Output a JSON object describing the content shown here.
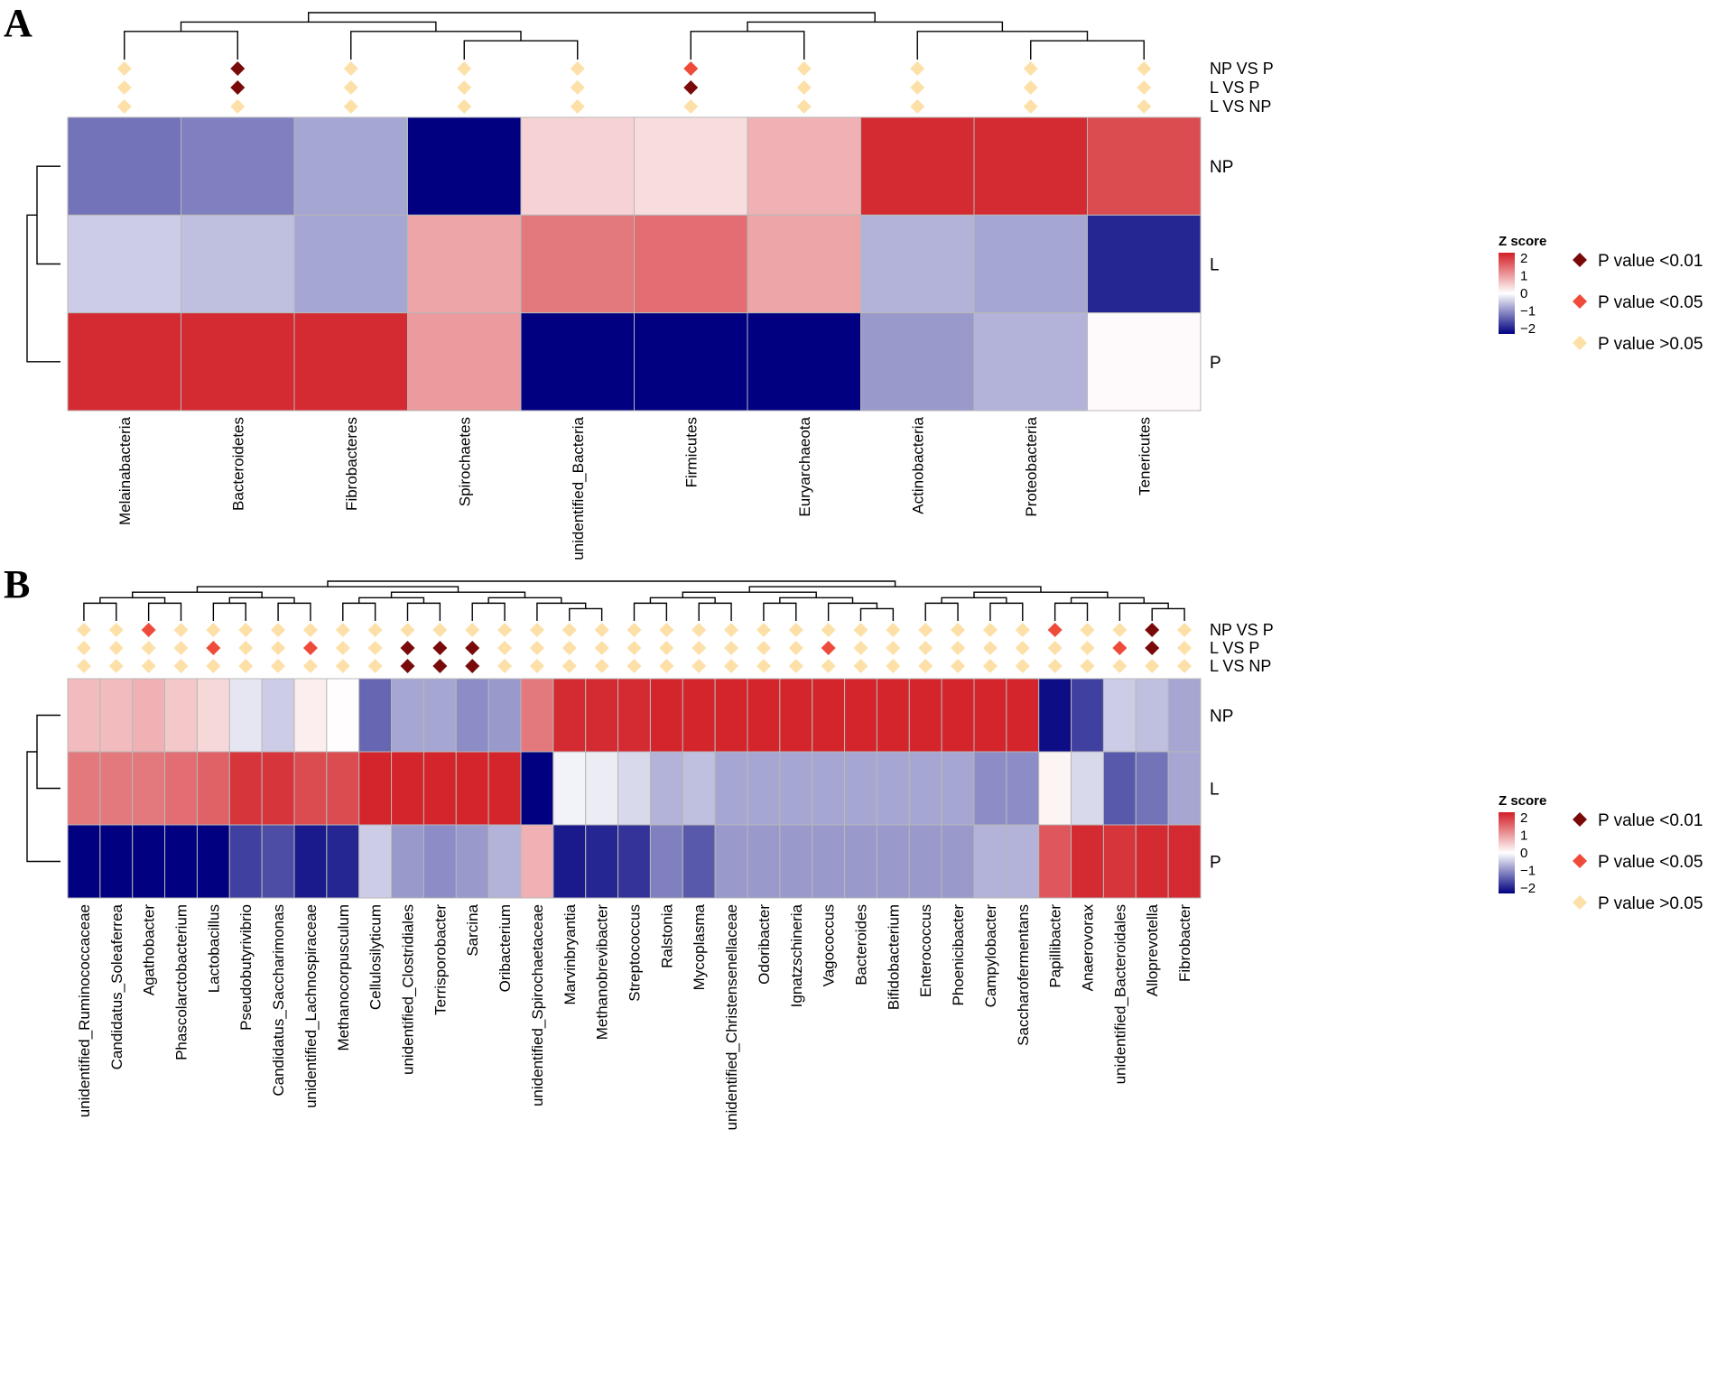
{
  "chart_data": [
    {
      "type": "heatmap",
      "panel": "A",
      "rows": [
        "NP",
        "L",
        "P"
      ],
      "columns": [
        "Melainabacteria",
        "Bacteroidetes",
        "Fibrobacteres",
        "Spirochaetes",
        "unidentified_Bacteria",
        "Firmicutes",
        "Euryarchaeota",
        "Actinobacteria",
        "Proteobacteria",
        "Tenericutes"
      ],
      "z": [
        [
          -1.1,
          -1.0,
          -0.7,
          -2.0,
          0.4,
          0.3,
          0.7,
          1.9,
          1.9,
          1.6
        ],
        [
          -0.4,
          -0.5,
          -0.7,
          0.8,
          1.2,
          1.3,
          0.8,
          -0.6,
          -0.7,
          -1.7
        ],
        [
          1.9,
          1.9,
          1.9,
          0.9,
          -2.0,
          -2.0,
          -2.0,
          -0.8,
          -0.6,
          0.05
        ]
      ],
      "tests": [
        "NP VS P",
        "L VS P",
        "L VS NP"
      ],
      "significance": [
        [
          ">0.05",
          "<0.01",
          ">0.05",
          ">0.05",
          ">0.05",
          "<0.05",
          ">0.05",
          ">0.05",
          ">0.05",
          ">0.05"
        ],
        [
          ">0.05",
          "<0.01",
          ">0.05",
          ">0.05",
          ">0.05",
          "<0.01",
          ">0.05",
          ">0.05",
          ">0.05",
          ">0.05"
        ],
        [
          ">0.05",
          ">0.05",
          ">0.05",
          ">0.05",
          ">0.05",
          ">0.05",
          ">0.05",
          ">0.05",
          ">0.05",
          ">0.05"
        ]
      ],
      "zlim": [
        -2,
        2
      ]
    },
    {
      "type": "heatmap",
      "panel": "B",
      "rows": [
        "NP",
        "L",
        "P"
      ],
      "columns": [
        "unidentified_Ruminococcaceae",
        "Candidatus_Soleaferrea",
        "Agathobacter",
        "Phascolarctobacterium",
        "Lactobacillus",
        "Pseudobutyrivibrio",
        "Candidatus_Saccharimonas",
        "unidentified_Lachnospiraceae",
        "Methanocorpusculum",
        "Cellulosilyticum",
        "unidentified_Clostridiales",
        "Terrisporobacter",
        "Sarcina",
        "Oribacterium",
        "unidentified_Spirochaetaceae",
        "Marvinbryantia",
        "Methanobrevibacter",
        "Streptococcus",
        "Ralstonia",
        "Mycoplasma",
        "unidentified_Christensenellaceae",
        "Odoribacter",
        "Ignatzschineria",
        "Vagococcus",
        "Bacteroides",
        "Bifidobacterium",
        "Enterococcus",
        "Phoenicibacter",
        "Campylobacter",
        "Saccharofermentans",
        "Papillibacter",
        "Anaerovorax",
        "unidentified_Bacteroidales",
        "Alloprevotella",
        "Fibrobacter"
      ],
      "z": [
        [
          0.6,
          0.6,
          0.7,
          0.5,
          0.35,
          -0.2,
          -0.4,
          0.15,
          0.02,
          -1.2,
          -0.7,
          -0.7,
          -0.9,
          -0.8,
          1.2,
          1.9,
          1.9,
          1.9,
          1.95,
          1.95,
          1.95,
          1.95,
          1.95,
          1.95,
          1.95,
          1.95,
          1.95,
          1.95,
          1.95,
          1.95,
          -1.9,
          -1.5,
          -0.4,
          -0.5,
          -0.7
        ],
        [
          1.2,
          1.2,
          1.2,
          1.3,
          1.4,
          1.8,
          1.8,
          1.6,
          1.6,
          1.95,
          1.95,
          1.95,
          1.95,
          1.95,
          -2.0,
          -0.1,
          -0.15,
          -0.3,
          -0.6,
          -0.5,
          -0.7,
          -0.7,
          -0.7,
          -0.7,
          -0.7,
          -0.7,
          -0.7,
          -0.7,
          -0.9,
          -0.9,
          0.1,
          -0.3,
          -1.3,
          -1.1,
          -0.7
        ],
        [
          -2.0,
          -2.0,
          -2.0,
          -2.0,
          -2.0,
          -1.5,
          -1.4,
          -1.8,
          -1.7,
          -0.4,
          -0.8,
          -0.9,
          -0.8,
          -0.6,
          0.7,
          -1.8,
          -1.7,
          -1.6,
          -1.0,
          -1.3,
          -0.8,
          -0.8,
          -0.8,
          -0.8,
          -0.8,
          -0.8,
          -0.8,
          -0.8,
          -0.6,
          -0.6,
          1.5,
          1.9,
          1.8,
          1.9,
          1.9
        ]
      ],
      "tests": [
        "NP VS P",
        "L VS P",
        "L VS NP"
      ],
      "significance": [
        [
          ">0.05",
          ">0.05",
          "<0.05",
          ">0.05",
          ">0.05",
          ">0.05",
          ">0.05",
          ">0.05",
          ">0.05",
          ">0.05",
          ">0.05",
          ">0.05",
          ">0.05",
          ">0.05",
          ">0.05",
          ">0.05",
          ">0.05",
          ">0.05",
          ">0.05",
          ">0.05",
          ">0.05",
          ">0.05",
          ">0.05",
          ">0.05",
          ">0.05",
          ">0.05",
          ">0.05",
          ">0.05",
          ">0.05",
          ">0.05",
          "<0.05",
          ">0.05",
          ">0.05",
          "<0.01",
          ">0.05"
        ],
        [
          ">0.05",
          ">0.05",
          ">0.05",
          ">0.05",
          "<0.05",
          ">0.05",
          ">0.05",
          "<0.05",
          ">0.05",
          ">0.05",
          "<0.01",
          "<0.01",
          "<0.01",
          ">0.05",
          ">0.05",
          ">0.05",
          ">0.05",
          ">0.05",
          ">0.05",
          ">0.05",
          ">0.05",
          ">0.05",
          ">0.05",
          "<0.05",
          ">0.05",
          ">0.05",
          ">0.05",
          ">0.05",
          ">0.05",
          ">0.05",
          ">0.05",
          ">0.05",
          "<0.05",
          "<0.01",
          ">0.05"
        ],
        [
          ">0.05",
          ">0.05",
          ">0.05",
          ">0.05",
          ">0.05",
          ">0.05",
          ">0.05",
          ">0.05",
          ">0.05",
          ">0.05",
          "<0.01",
          "<0.01",
          "<0.01",
          ">0.05",
          ">0.05",
          ">0.05",
          ">0.05",
          ">0.05",
          ">0.05",
          ">0.05",
          ">0.05",
          ">0.05",
          ">0.05",
          ">0.05",
          ">0.05",
          ">0.05",
          ">0.05",
          ">0.05",
          ">0.05",
          ">0.05",
          ">0.05",
          ">0.05",
          ">0.05",
          ">0.05",
          ">0.05"
        ]
      ],
      "zlim": [
        -2,
        2
      ]
    }
  ],
  "legend": {
    "title": "Z score",
    "ticks": [
      "2",
      "1",
      "0",
      "−1",
      "−2"
    ],
    "tick_values": [
      2,
      1,
      0,
      -1,
      -2
    ],
    "items": [
      {
        "key": "<0.01",
        "label": "P value <0.01",
        "color": "#7a0a0a"
      },
      {
        "key": "<0.05",
        "label": "P value <0.05",
        "color": "#ef4b3a"
      },
      {
        "key": ">0.05",
        "label": "P value >0.05",
        "color": "#fde0a8"
      }
    ]
  },
  "colors": {
    "low": "#000080",
    "mid": "#ffffff",
    "high": "#d21f26"
  }
}
